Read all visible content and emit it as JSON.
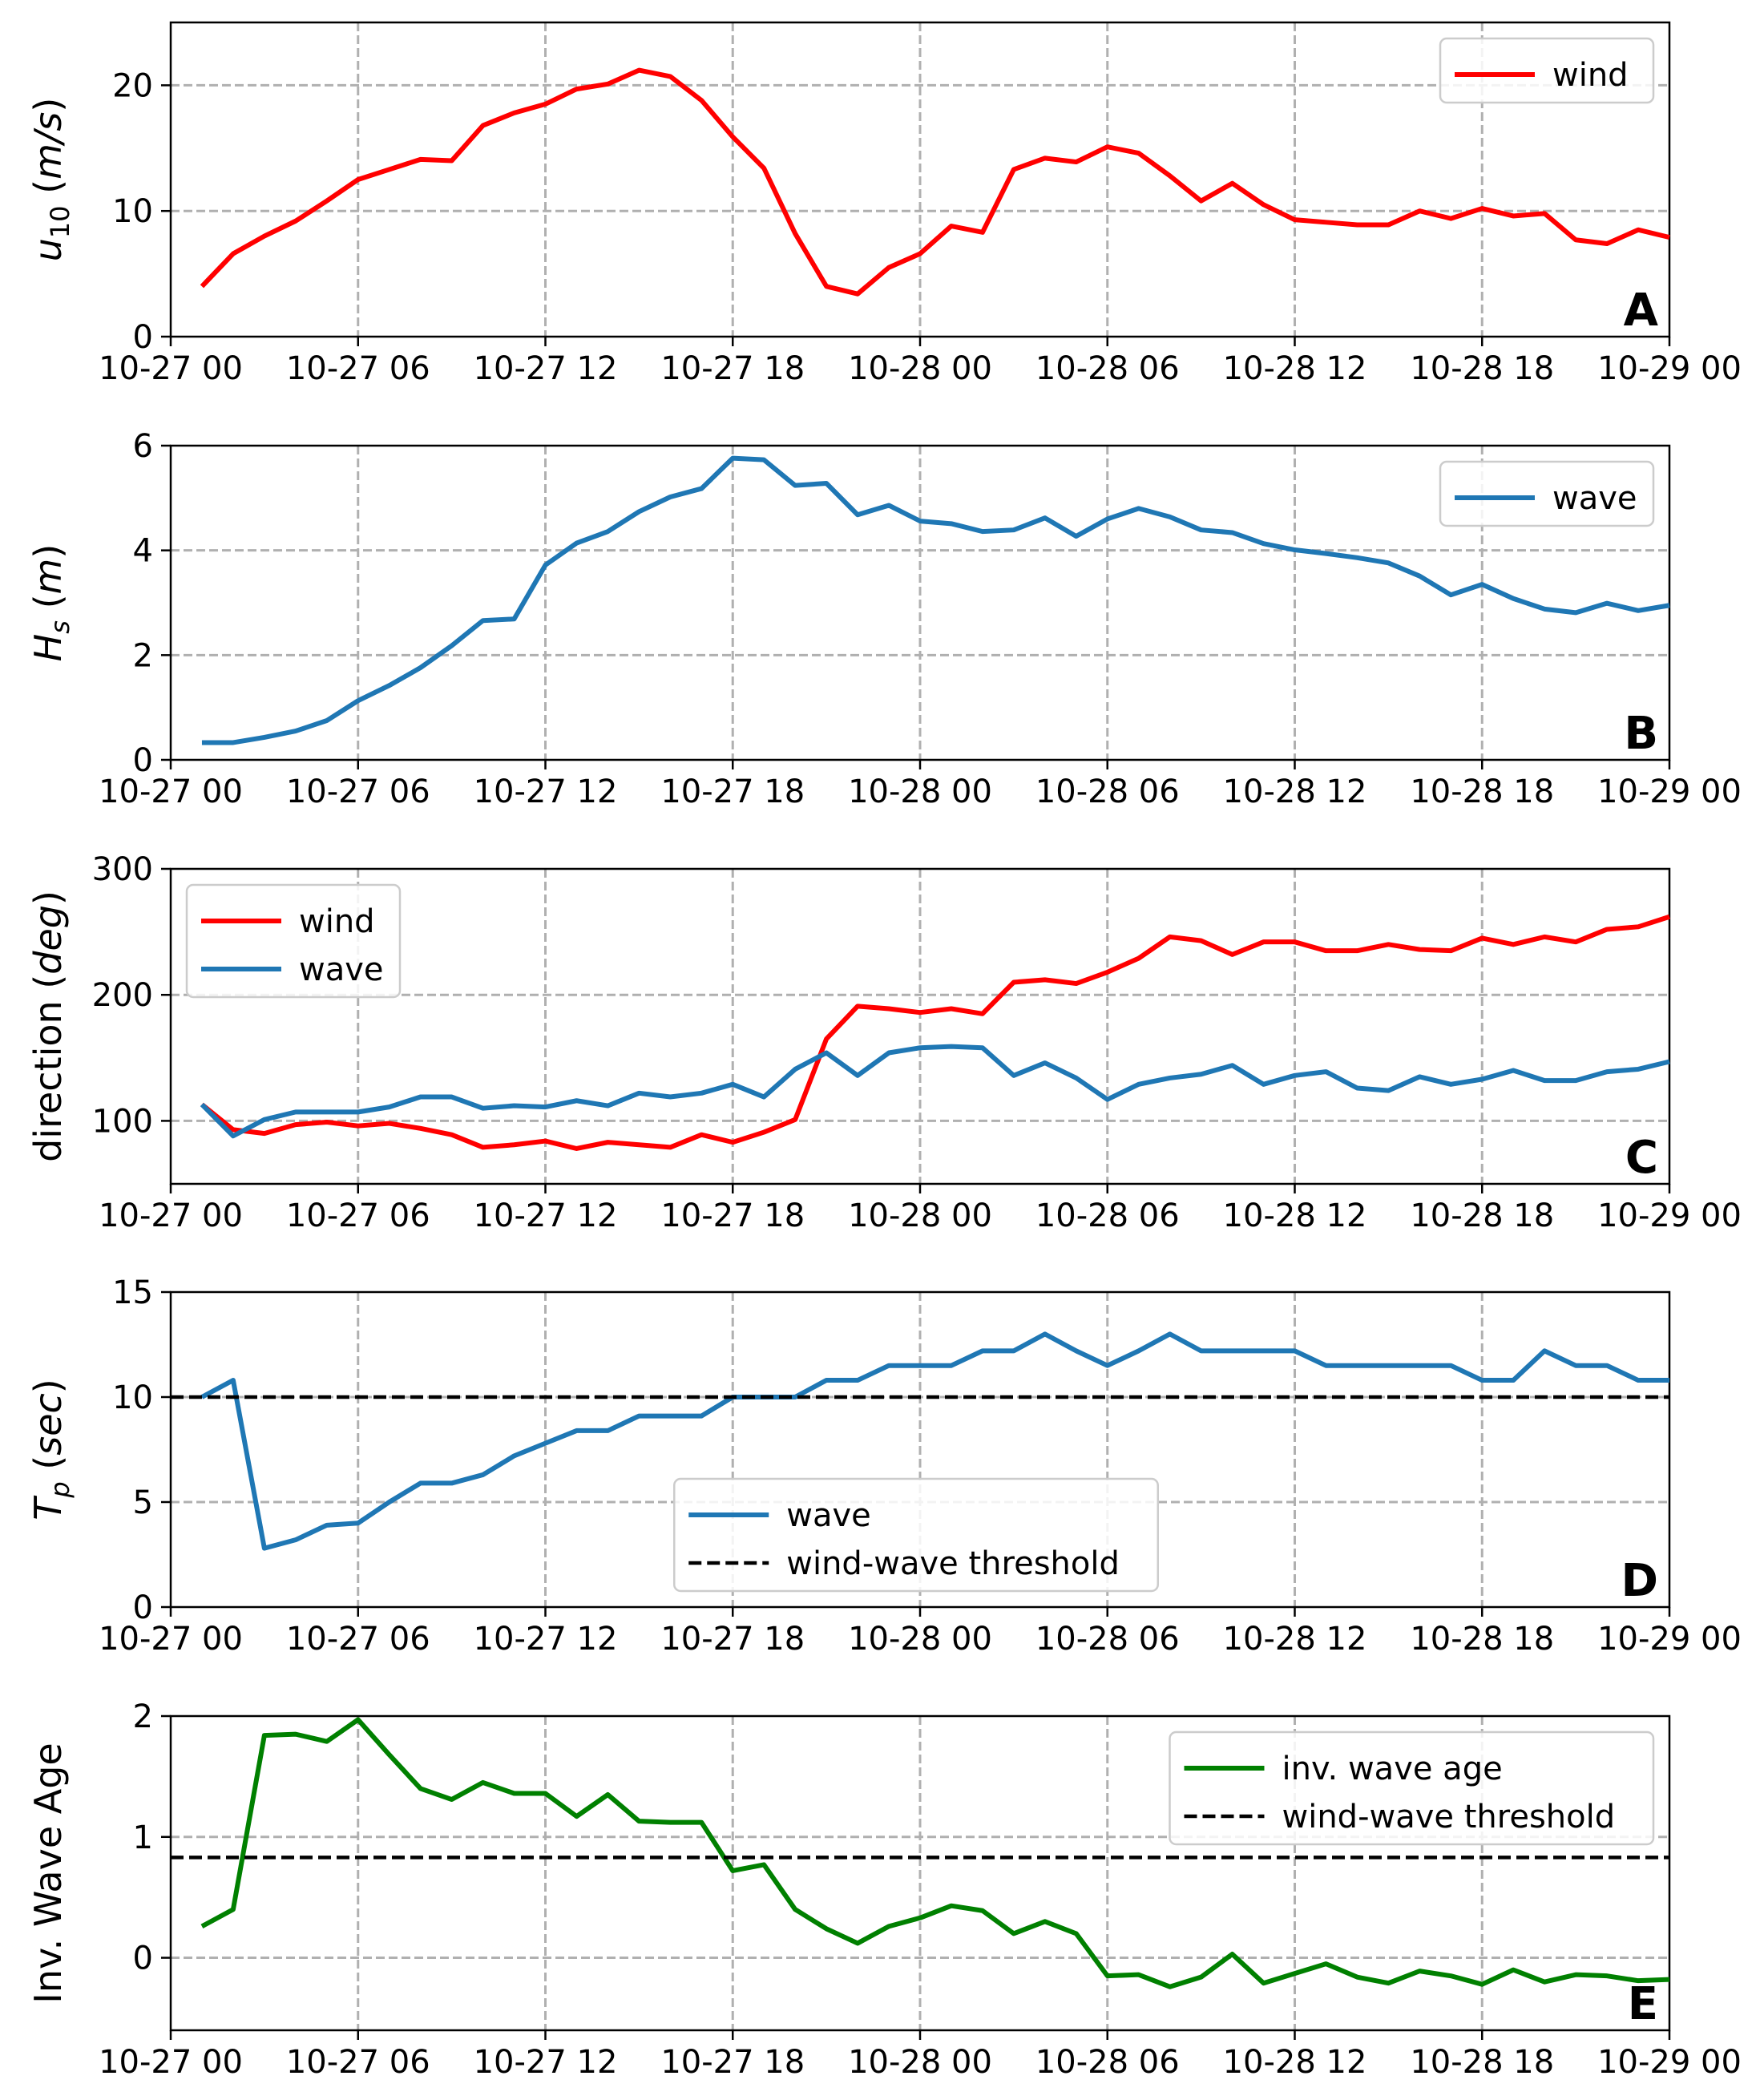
{
  "x_tick_labels": [
    "10-27 00",
    "10-27 06",
    "10-27 12",
    "10-27 18",
    "10-28 00",
    "10-28 06",
    "10-28 12",
    "10-28 18",
    "10-29 00"
  ],
  "chart_data": [
    {
      "type": "line",
      "panel": "A",
      "ylabel": "u_10 (m/s)",
      "xlim": [
        "10-27 00",
        "10-29 00"
      ],
      "ylim": [
        0,
        25
      ],
      "yticks": [
        0,
        10,
        20
      ],
      "grid": true,
      "legend_position": "top-right",
      "x_hours": [
        1,
        2,
        3,
        4,
        5,
        6,
        7,
        8,
        9,
        10,
        11,
        12,
        13,
        14,
        15,
        16,
        17,
        18,
        19,
        20,
        21,
        22,
        23,
        24,
        25,
        26,
        27,
        28,
        29,
        30,
        31,
        32,
        33,
        34,
        35,
        36,
        37,
        38,
        39,
        40,
        41,
        42,
        43,
        44,
        45,
        46,
        47,
        48
      ],
      "series": [
        {
          "name": "wind",
          "color": "#ff0000",
          "dashed": false,
          "values": [
            4.0,
            6.6,
            8.0,
            9.2,
            10.8,
            12.5,
            13.3,
            14.1,
            14.0,
            16.8,
            17.8,
            18.5,
            19.7,
            20.1,
            21.2,
            20.7,
            18.8,
            15.9,
            13.4,
            8.2,
            4.0,
            3.4,
            5.5,
            6.6,
            8.8,
            8.3,
            13.3,
            14.2,
            13.9,
            15.1,
            14.6,
            12.8,
            10.8,
            12.2,
            10.5,
            9.3,
            9.1,
            8.9,
            8.9,
            10.0,
            9.4,
            10.2,
            9.6,
            9.8,
            7.7,
            7.4,
            8.5,
            7.9
          ]
        }
      ]
    },
    {
      "type": "line",
      "panel": "B",
      "ylabel": "H_s (m)",
      "xlim": [
        "10-27 00",
        "10-29 00"
      ],
      "ylim": [
        0,
        6
      ],
      "yticks": [
        0,
        2,
        4,
        6
      ],
      "grid": true,
      "legend_position": "top-right",
      "x_hours": [
        1,
        2,
        3,
        4,
        5,
        6,
        7,
        8,
        9,
        10,
        11,
        12,
        13,
        14,
        15,
        16,
        17,
        18,
        19,
        20,
        21,
        22,
        23,
        24,
        25,
        26,
        27,
        28,
        29,
        30,
        31,
        32,
        33,
        34,
        35,
        36,
        37,
        38,
        39,
        40,
        41,
        42,
        43,
        44,
        45,
        46,
        47,
        48
      ],
      "series": [
        {
          "name": "wave",
          "color": "#1f77b4",
          "dashed": false,
          "values": [
            0.33,
            0.33,
            0.43,
            0.55,
            0.75,
            1.13,
            1.42,
            1.76,
            2.18,
            2.66,
            2.69,
            3.72,
            4.14,
            4.36,
            4.74,
            5.02,
            5.18,
            5.76,
            5.73,
            5.24,
            5.28,
            4.68,
            4.86,
            4.56,
            4.51,
            4.36,
            4.39,
            4.62,
            4.27,
            4.6,
            4.8,
            4.64,
            4.39,
            4.34,
            4.13,
            4.01,
            3.94,
            3.86,
            3.76,
            3.51,
            3.15,
            3.35,
            3.08,
            2.88,
            2.81,
            2.99,
            2.85,
            2.95
          ]
        }
      ]
    },
    {
      "type": "line",
      "panel": "C",
      "ylabel": "direction (deg)",
      "xlim": [
        "10-27 00",
        "10-29 00"
      ],
      "ylim": [
        50,
        300
      ],
      "yticks": [
        100,
        200,
        300
      ],
      "grid": true,
      "legend_position": "top-left",
      "x_hours": [
        1,
        2,
        3,
        4,
        5,
        6,
        7,
        8,
        9,
        10,
        11,
        12,
        13,
        14,
        15,
        16,
        17,
        18,
        19,
        20,
        21,
        22,
        23,
        24,
        25,
        26,
        27,
        28,
        29,
        30,
        31,
        32,
        33,
        34,
        35,
        36,
        37,
        38,
        39,
        40,
        41,
        42,
        43,
        44,
        45,
        46,
        47,
        48
      ],
      "series": [
        {
          "name": "wind",
          "color": "#ff0000",
          "dashed": false,
          "values": [
            113,
            93,
            90,
            97,
            99,
            96,
            98,
            94,
            89,
            79,
            81,
            84,
            78,
            83,
            81,
            79,
            89,
            83,
            91,
            101,
            165,
            191,
            189,
            186,
            189,
            185,
            210,
            212,
            209,
            218,
            229,
            246,
            243,
            232,
            242,
            242,
            235,
            235,
            240,
            236,
            235,
            245,
            240,
            246,
            242,
            252,
            254,
            262
          ]
        },
        {
          "name": "wave",
          "color": "#1f77b4",
          "dashed": false,
          "values": [
            113,
            88,
            101,
            107,
            107,
            107,
            111,
            119,
            119,
            110,
            112,
            111,
            116,
            112,
            122,
            119,
            122,
            129,
            119,
            141,
            154,
            136,
            154,
            158,
            159,
            158,
            136,
            146,
            134,
            117,
            129,
            134,
            137,
            144,
            129,
            136,
            139,
            126,
            124,
            135,
            129,
            133,
            140,
            132,
            132,
            139,
            141,
            147
          ]
        }
      ]
    },
    {
      "type": "line",
      "panel": "D",
      "ylabel": "T_p (sec)",
      "xlim": [
        "10-27 00",
        "10-29 00"
      ],
      "ylim": [
        0,
        15
      ],
      "yticks": [
        0,
        5,
        10,
        15
      ],
      "grid": true,
      "legend_position": "lower-center",
      "x_hours": [
        1,
        2,
        3,
        4,
        5,
        6,
        7,
        8,
        9,
        10,
        11,
        12,
        13,
        14,
        15,
        16,
        17,
        18,
        19,
        20,
        21,
        22,
        23,
        24,
        25,
        26,
        27,
        28,
        29,
        30,
        31,
        32,
        33,
        34,
        35,
        36,
        37,
        38,
        39,
        40,
        41,
        42,
        43,
        44,
        45,
        46,
        47,
        48
      ],
      "series": [
        {
          "name": "wave",
          "color": "#1f77b4",
          "dashed": false,
          "values": [
            10.0,
            10.8,
            2.8,
            3.2,
            3.9,
            4.0,
            5.0,
            5.9,
            5.9,
            6.3,
            7.2,
            7.8,
            8.4,
            8.4,
            9.1,
            9.1,
            9.1,
            10.0,
            10.0,
            10.0,
            10.8,
            10.8,
            11.5,
            11.5,
            11.5,
            12.2,
            12.2,
            13.0,
            12.2,
            11.5,
            12.2,
            13.0,
            12.2,
            12.2,
            12.2,
            12.2,
            11.5,
            11.5,
            11.5,
            11.5,
            11.5,
            10.8,
            10.8,
            12.2,
            11.5,
            11.5,
            10.8,
            10.8
          ]
        },
        {
          "name": "wind-wave threshold",
          "color": "#000000",
          "dashed": true,
          "constant": 10
        }
      ]
    },
    {
      "type": "line",
      "panel": "E",
      "ylabel": "Inv. Wave Age",
      "xlim": [
        "10-27 00",
        "10-29 00"
      ],
      "ylim": [
        -0.6,
        2
      ],
      "yticks": [
        0,
        1,
        2
      ],
      "grid": true,
      "legend_position": "top-right",
      "x_hours": [
        1,
        2,
        3,
        4,
        5,
        6,
        7,
        8,
        9,
        10,
        11,
        12,
        13,
        14,
        15,
        16,
        17,
        18,
        19,
        20,
        21,
        22,
        23,
        24,
        25,
        26,
        27,
        28,
        29,
        30,
        31,
        32,
        33,
        34,
        35,
        36,
        37,
        38,
        39,
        40,
        41,
        42,
        43,
        44,
        45,
        46,
        47,
        48
      ],
      "series": [
        {
          "name": "inv. wave age",
          "color": "#008000",
          "dashed": false,
          "values": [
            0.26,
            0.4,
            1.84,
            1.85,
            1.79,
            1.97,
            1.68,
            1.4,
            1.31,
            1.45,
            1.36,
            1.36,
            1.17,
            1.35,
            1.13,
            1.12,
            1.12,
            0.72,
            0.77,
            0.4,
            0.24,
            0.12,
            0.26,
            0.33,
            0.43,
            0.39,
            0.2,
            0.3,
            0.2,
            -0.15,
            -0.14,
            -0.24,
            -0.16,
            0.03,
            -0.21,
            -0.13,
            -0.05,
            -0.16,
            -0.21,
            -0.11,
            -0.15,
            -0.22,
            -0.1,
            -0.2,
            -0.14,
            -0.15,
            -0.19,
            -0.18
          ]
        },
        {
          "name": "wind-wave threshold",
          "color": "#000000",
          "dashed": true,
          "constant": 0.83
        }
      ]
    }
  ]
}
